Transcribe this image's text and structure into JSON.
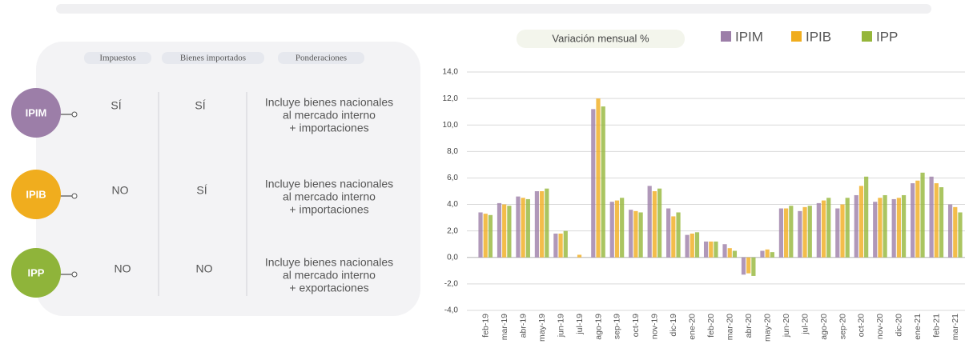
{
  "table": {
    "headers": [
      "Impuestos",
      "Bienes importados",
      "Ponderaciones"
    ],
    "rows": [
      {
        "label": "IPIM",
        "color": "#9c7ea8",
        "cells": [
          "SÍ",
          "SÍ",
          [
            "Incluye bienes nacionales",
            "al mercado interno",
            "+ importaciones"
          ]
        ]
      },
      {
        "label": "IPIB",
        "color": "#f0ad1e",
        "cells": [
          "NO",
          "SÍ",
          [
            "Incluye bienes nacionales",
            "al mercado interno",
            "+ importaciones"
          ]
        ]
      },
      {
        "label": "IPP",
        "color": "#8fb43a",
        "cells": [
          "NO",
          "NO",
          [
            "Incluye bienes nacionales",
            "al mercado interno",
            "+ exportaciones"
          ]
        ]
      }
    ]
  },
  "chart_data": {
    "type": "bar",
    "title": "Variación mensual %",
    "categories": [
      "feb-19",
      "mar-19",
      "abr-19",
      "may-19",
      "jun-19",
      "jul-19",
      "ago-19",
      "sep-19",
      "oct-19",
      "nov-19",
      "dic-19",
      "ene-20",
      "feb-20",
      "mar-20",
      "abr-20",
      "may-20",
      "jun-20",
      "jul-20",
      "ago-20",
      "sep-20",
      "oct-20",
      "nov-20",
      "dic-20",
      "ene-21",
      "feb-21",
      "mar-21"
    ],
    "series": [
      {
        "name": "IPIM",
        "color": "#9c7ea8",
        "values": [
          3.4,
          4.1,
          4.6,
          5.0,
          1.8,
          0.0,
          11.2,
          4.2,
          3.6,
          5.4,
          3.7,
          1.7,
          1.2,
          1.0,
          -1.3,
          0.5,
          3.7,
          3.5,
          4.1,
          3.7,
          4.7,
          4.2,
          4.4,
          5.6,
          6.1,
          4.0
        ]
      },
      {
        "name": "IPIB",
        "color": "#f0ad1e",
        "values": [
          3.3,
          4.0,
          4.5,
          5.0,
          1.8,
          0.2,
          12.0,
          4.3,
          3.5,
          5.0,
          3.1,
          1.8,
          1.2,
          0.7,
          -1.2,
          0.6,
          3.7,
          3.8,
          4.3,
          4.0,
          5.4,
          4.5,
          4.5,
          5.8,
          5.6,
          3.8
        ]
      },
      {
        "name": "IPP",
        "color": "#95b63a",
        "values": [
          3.2,
          3.9,
          4.4,
          5.2,
          2.0,
          0.0,
          11.4,
          4.5,
          3.4,
          5.2,
          3.4,
          1.9,
          1.2,
          0.5,
          -1.4,
          0.4,
          3.9,
          3.9,
          4.5,
          4.5,
          6.1,
          4.7,
          4.7,
          6.4,
          5.3,
          3.4
        ]
      }
    ],
    "ylim": [
      -4,
      14
    ],
    "yticks": [
      {
        "value": -4,
        "label": "-4,0"
      },
      {
        "value": -2,
        "label": "-2,0"
      },
      {
        "value": 0,
        "label": "0,0"
      },
      {
        "value": 2,
        "label": "2,0"
      },
      {
        "value": 4,
        "label": "4,0"
      },
      {
        "value": 6,
        "label": "6,0"
      },
      {
        "value": 8,
        "label": "8,0"
      },
      {
        "value": 10,
        "label": "10,0"
      },
      {
        "value": 12,
        "label": "12,0"
      },
      {
        "value": 14,
        "label": "14,0"
      }
    ],
    "grid": true
  }
}
